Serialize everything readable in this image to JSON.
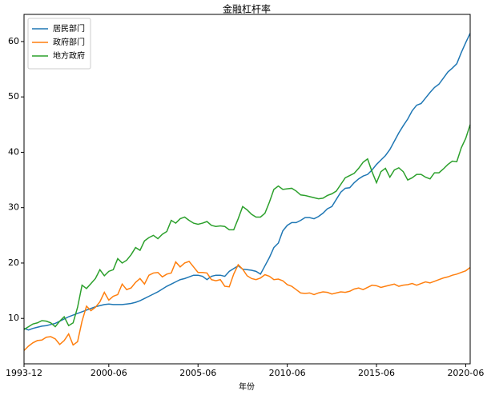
{
  "chart_data": {
    "type": "line",
    "title": "金融杠杆率",
    "x_label": "年份",
    "categories": [
      "1993-12",
      null,
      null,
      null,
      null,
      null,
      null,
      null,
      null,
      null,
      null,
      null,
      null,
      null,
      null,
      null,
      null,
      null,
      null,
      "2000-06",
      null,
      null,
      null,
      null,
      null,
      null,
      null,
      null,
      null,
      null,
      null,
      null,
      null,
      null,
      null,
      null,
      null,
      null,
      null,
      "2005-06",
      null,
      null,
      null,
      null,
      null,
      null,
      null,
      null,
      null,
      null,
      null,
      null,
      null,
      null,
      null,
      null,
      null,
      null,
      null,
      "2010-06",
      null,
      null,
      null,
      null,
      null,
      null,
      null,
      null,
      null,
      null,
      null,
      null,
      null,
      null,
      null,
      null,
      null,
      null,
      null,
      "2015-06",
      null,
      null,
      null,
      null,
      null,
      null,
      null,
      null,
      null,
      null,
      null,
      null,
      null,
      null,
      null,
      null,
      null,
      null,
      null,
      "2020-06",
      null
    ],
    "series": [
      {
        "name": "居民部门",
        "color": "#1f77b4",
        "values": [
          8.2,
          7.9,
          8.2,
          8.4,
          8.6,
          8.7,
          8.9,
          9.1,
          9.5,
          9.9,
          10.3,
          10.6,
          10.9,
          11.2,
          11.5,
          11.8,
          12.1,
          12.3,
          12.5,
          12.6,
          12.5,
          12.5,
          12.5,
          12.6,
          12.7,
          12.9,
          13.2,
          13.6,
          14.0,
          14.4,
          14.8,
          15.3,
          15.8,
          16.2,
          16.6,
          17.0,
          17.2,
          17.5,
          17.8,
          17.8,
          17.6,
          17.0,
          17.6,
          17.8,
          17.8,
          17.6,
          18.5,
          19.0,
          19.5,
          18.9,
          18.8,
          18.7,
          18.5,
          18.0,
          19.5,
          21.0,
          22.8,
          23.6,
          25.8,
          26.8,
          27.3,
          27.3,
          27.7,
          28.2,
          28.2,
          28.0,
          28.4,
          29.0,
          29.8,
          30.2,
          31.5,
          32.8,
          33.5,
          33.6,
          34.5,
          35.2,
          35.7,
          36.0,
          36.8,
          37.8,
          38.6,
          39.4,
          40.5,
          42.0,
          43.5,
          44.8,
          46.0,
          47.5,
          48.5,
          48.8,
          49.8,
          50.8,
          51.7,
          52.3,
          53.4,
          54.5,
          55.2,
          56.0,
          58.0,
          59.8,
          61.5
        ]
      },
      {
        "name": "政府部门",
        "color": "#ff7f0e",
        "values": [
          4.2,
          5.0,
          5.6,
          6.0,
          6.1,
          6.6,
          6.7,
          6.3,
          5.3,
          6.0,
          7.2,
          5.2,
          5.8,
          9.5,
          12.2,
          11.4,
          12.0,
          13.0,
          14.7,
          13.3,
          14.0,
          14.3,
          16.2,
          15.2,
          15.5,
          16.5,
          17.2,
          16.2,
          17.8,
          18.2,
          18.3,
          17.5,
          18.0,
          18.2,
          20.2,
          19.3,
          20.0,
          20.3,
          19.3,
          18.3,
          18.3,
          18.2,
          17.0,
          16.8,
          17.0,
          15.8,
          15.7,
          18.0,
          19.7,
          18.9,
          17.7,
          17.2,
          17.0,
          17.3,
          17.9,
          17.6,
          17.0,
          17.1,
          16.8,
          16.1,
          15.8,
          15.2,
          14.6,
          14.5,
          14.6,
          14.3,
          14.6,
          14.8,
          14.7,
          14.4,
          14.6,
          14.8,
          14.7,
          14.9,
          15.3,
          15.5,
          15.2,
          15.6,
          16.0,
          15.9,
          15.6,
          15.8,
          16.0,
          16.2,
          15.8,
          16.0,
          16.1,
          16.3,
          16.0,
          16.3,
          16.6,
          16.4,
          16.7,
          17.0,
          17.3,
          17.5,
          17.8,
          18.0,
          18.3,
          18.6,
          19.2
        ]
      },
      {
        "name": "地方政府",
        "color": "#2ca02c",
        "values": [
          8.0,
          8.5,
          9.0,
          9.2,
          9.6,
          9.5,
          9.2,
          8.5,
          9.5,
          10.3,
          8.7,
          9.2,
          12.0,
          16.0,
          15.4,
          16.3,
          17.2,
          18.8,
          17.7,
          18.5,
          18.8,
          20.8,
          20.0,
          20.5,
          21.5,
          22.8,
          22.3,
          24.0,
          24.6,
          25.0,
          24.4,
          25.2,
          25.7,
          27.7,
          27.2,
          28.0,
          28.3,
          27.7,
          27.2,
          27.0,
          27.2,
          27.5,
          26.8,
          26.6,
          26.7,
          26.6,
          26.0,
          26.0,
          28.0,
          30.2,
          29.6,
          28.8,
          28.3,
          28.3,
          29.0,
          31.0,
          33.3,
          33.9,
          33.3,
          33.4,
          33.5,
          33.0,
          32.3,
          32.2,
          32.0,
          31.8,
          31.6,
          31.7,
          32.2,
          32.5,
          33.0,
          34.2,
          35.4,
          35.8,
          36.2,
          37.1,
          38.2,
          38.8,
          36.5,
          34.5,
          36.5,
          37.1,
          35.5,
          36.8,
          37.2,
          36.5,
          35.0,
          35.4,
          36.0,
          36.0,
          35.5,
          35.2,
          36.3,
          36.3,
          37.0,
          37.8,
          38.4,
          38.3,
          40.8,
          42.5,
          45.0
        ]
      }
    ],
    "ylim": [
      1.8,
      64.9
    ],
    "yticks": [
      10,
      20,
      30,
      40,
      50,
      60
    ],
    "legend": "upper-left"
  }
}
